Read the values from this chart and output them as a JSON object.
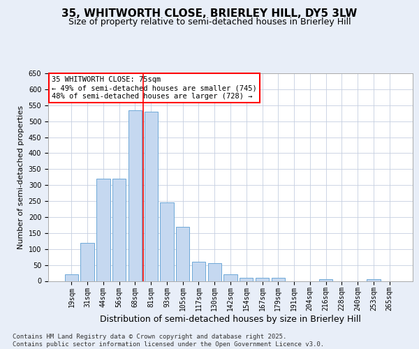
{
  "title": "35, WHITWORTH CLOSE, BRIERLEY HILL, DY5 3LW",
  "subtitle": "Size of property relative to semi-detached houses in Brierley Hill",
  "xlabel": "Distribution of semi-detached houses by size in Brierley Hill",
  "ylabel": "Number of semi-detached properties",
  "footnote": "Contains HM Land Registry data © Crown copyright and database right 2025.\nContains public sector information licensed under the Open Government Licence v3.0.",
  "categories": [
    "19sqm",
    "31sqm",
    "44sqm",
    "56sqm",
    "68sqm",
    "81sqm",
    "93sqm",
    "105sqm",
    "117sqm",
    "130sqm",
    "142sqm",
    "154sqm",
    "167sqm",
    "179sqm",
    "191sqm",
    "204sqm",
    "216sqm",
    "228sqm",
    "240sqm",
    "253sqm",
    "265sqm"
  ],
  "values": [
    20,
    120,
    320,
    320,
    535,
    530,
    245,
    170,
    60,
    55,
    20,
    10,
    10,
    10,
    0,
    0,
    5,
    0,
    0,
    5,
    0
  ],
  "bar_color": "#c5d8f0",
  "bar_edge_color": "#6ea8d8",
  "vline_x": 4.5,
  "vline_color": "red",
  "annotation_text": "35 WHITWORTH CLOSE: 75sqm\n← 49% of semi-detached houses are smaller (745)\n48% of semi-detached houses are larger (728) →",
  "annotation_box_color": "white",
  "annotation_box_edge_color": "red",
  "ylim": [
    0,
    650
  ],
  "yticks": [
    0,
    50,
    100,
    150,
    200,
    250,
    300,
    350,
    400,
    450,
    500,
    550,
    600,
    650
  ],
  "bg_color": "#e8eef8",
  "plot_bg_color": "white",
  "grid_color": "#c5cfe0",
  "title_fontsize": 11,
  "subtitle_fontsize": 9,
  "xlabel_fontsize": 9,
  "ylabel_fontsize": 8,
  "tick_fontsize": 7,
  "annot_fontsize": 7.5,
  "footnote_fontsize": 6.5
}
